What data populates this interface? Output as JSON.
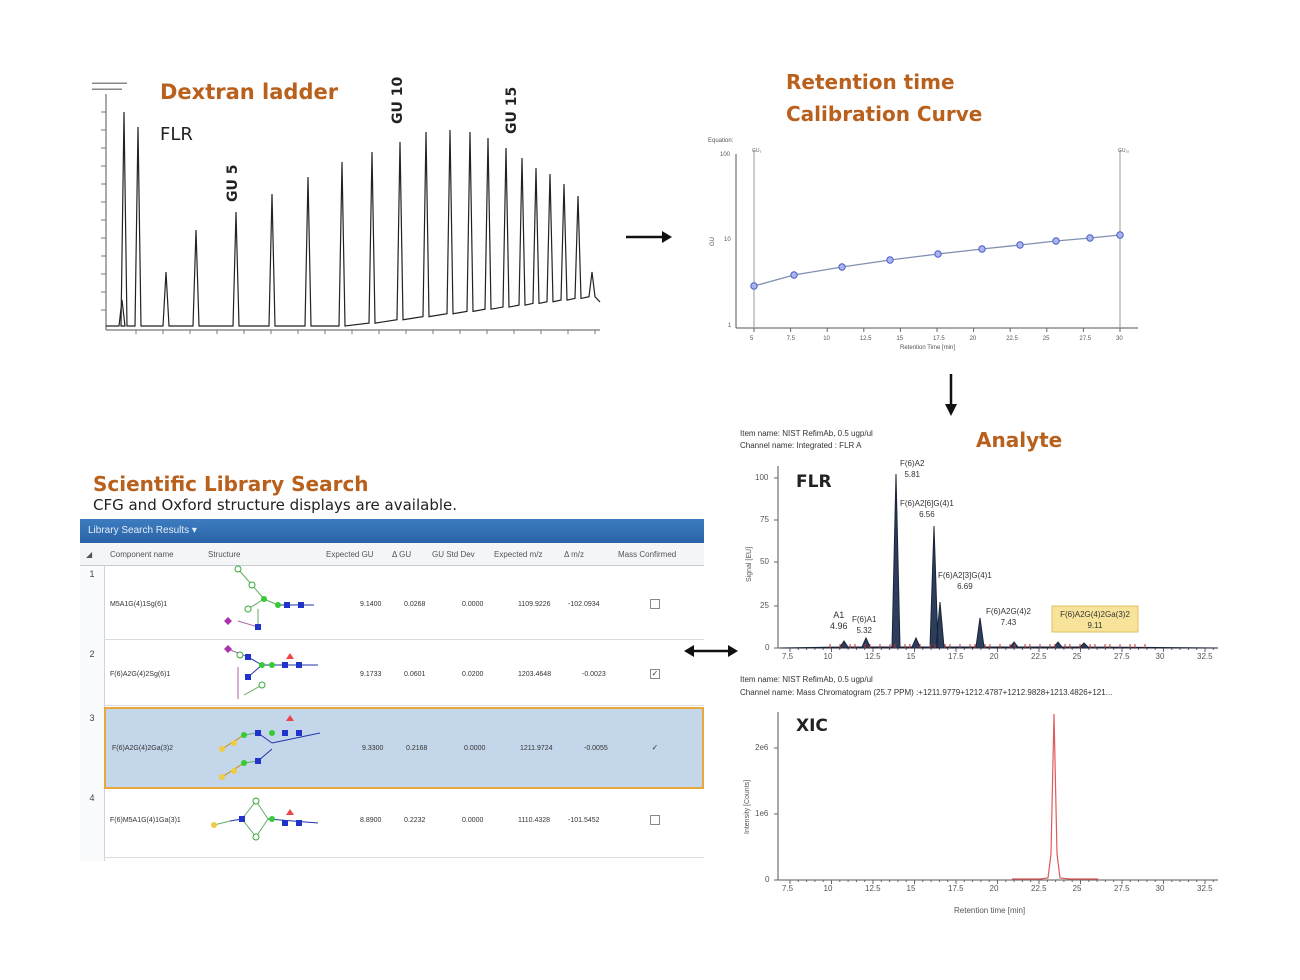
{
  "labels": {
    "dextran_title": "Dextran ladder",
    "flr": "FLR",
    "gu5": "GU 5",
    "gu10": "GU 10",
    "gu15": "GU 15",
    "cal_line1": "Retention time",
    "cal_line2": "Calibration Curve",
    "analyte": "Analyte",
    "lib_title": "Scientific Library Search",
    "lib_subtitle": "CFG and Oxford structure displays are available.",
    "flr_panel": "FLR",
    "xic_panel": "XIC"
  },
  "analyte_info": {
    "item": "Item name: NIST RefimAb, 0.5 ugp/ul",
    "channel": "Channel name: Integrated : FLR A",
    "item2": "Item name: NIST RefimAb, 0.5 ugp/ul",
    "channel2": "Channel name: Mass Chromatogram (25.7 PPM) :+1211.9779+1212.4787+1212.9828+1213.4826+121..."
  },
  "calibration": {
    "equation_label": "Equation:",
    "ylabel": "GU",
    "xlabel": "Retention Time [min]",
    "yticks": [
      "100",
      "10",
      "1"
    ],
    "xticks": [
      "5",
      "7.5",
      "10",
      "12.5",
      "15",
      "17.5",
      "20",
      "22.5",
      "25",
      "27.5",
      "30"
    ]
  },
  "library": {
    "bar_title": "Library Search Results ▾",
    "columns": [
      "Component name",
      "Structure",
      "Expected GU",
      "Δ GU",
      "GU Std Dev",
      "Expected m/z",
      "Δ m/z",
      "Mass Confirmed"
    ],
    "rows": [
      {
        "num": "1",
        "name": "M5A1G(4)1Sg(6)1",
        "gu": "9.1400",
        "dgu": "0.0268",
        "std": "0.0000",
        "mz": "1109.9226",
        "dmz": "-102.0934",
        "confirmed": false,
        "selected": false
      },
      {
        "num": "2",
        "name": "F(6)A2G(4)2Sg(6)1",
        "gu": "9.1733",
        "dgu": "0.0601",
        "std": "0.0200",
        "mz": "1203.4648",
        "dmz": "-0.0023",
        "confirmed": true,
        "selected": false
      },
      {
        "num": "3",
        "name": "F(6)A2G(4)2Ga(3)2",
        "gu": "9.3300",
        "dgu": "0.2168",
        "std": "0.0000",
        "mz": "1211.9724",
        "dmz": "-0.0055",
        "confirmed": true,
        "selected": true
      },
      {
        "num": "4",
        "name": "F(6)M5A1G(4)1Ga(3)1",
        "gu": "8.8900",
        "dgu": "0.2232",
        "std": "0.0000",
        "mz": "1110.4328",
        "dmz": "-101.5452",
        "confirmed": false,
        "selected": false
      }
    ]
  },
  "flr_chart": {
    "ylabel": "Signal [EU]",
    "yticks": [
      "100",
      "75",
      "50",
      "25",
      "0"
    ],
    "xticks": [
      "7.5",
      "10",
      "12.5",
      "15",
      "17.5",
      "20",
      "22.5",
      "25",
      "27.5",
      "30",
      "32.5"
    ],
    "peaks": [
      {
        "name": "A1",
        "rt": "4.96"
      },
      {
        "name": "F(6)A1",
        "rt": "5.32"
      },
      {
        "name": "F(6)A2",
        "rt": "5.81"
      },
      {
        "name": "F(6)A2[6]G(4)1",
        "rt": "6.56"
      },
      {
        "name": "F(6)A2[3]G(4)1",
        "rt": "6.69"
      },
      {
        "name": "F(6)A2G(4)2",
        "rt": "7.43"
      },
      {
        "name": "F(6)A2G(4)2Ga(3)2",
        "rt": "9.11"
      }
    ]
  },
  "xic_chart": {
    "ylabel": "Intensity [Counts]",
    "xlabel": "Retention time [min]",
    "yticks": [
      "2e6",
      "1e6",
      "0"
    ],
    "xticks": [
      "7.5",
      "10",
      "12.5",
      "15",
      "17.5",
      "20",
      "22.5",
      "25",
      "27.5",
      "30",
      "32.5"
    ]
  },
  "colors": {
    "orange": "#b8601c",
    "peak_fill": "#2c3e5c",
    "xic_red": "#e05a5a",
    "cal_point": "#4a5cc8",
    "highlight": "#f7e49a"
  }
}
